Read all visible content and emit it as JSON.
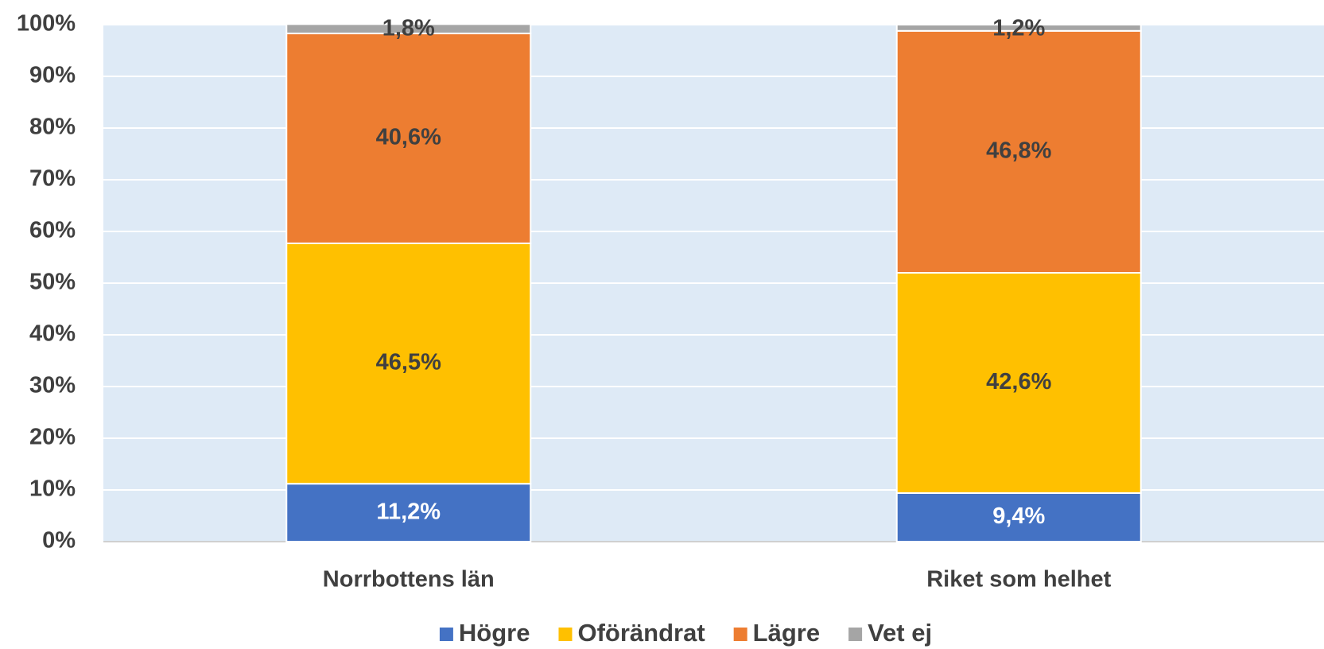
{
  "chart_data": {
    "type": "stacked-bar",
    "categories": [
      "Norrbottens län",
      "Riket som helhet"
    ],
    "series": [
      {
        "name": "Högre",
        "color": "#4472c4",
        "label_color": "#ffffff",
        "values": [
          11.2,
          9.4
        ],
        "value_labels": [
          "11,2%",
          "9,4%"
        ]
      },
      {
        "name": "Oförändrat",
        "color": "#ffc000",
        "label_color": "#404040",
        "values": [
          46.5,
          42.6
        ],
        "value_labels": [
          "46,5%",
          "42,6%"
        ]
      },
      {
        "name": "Lägre",
        "color": "#ed7d31",
        "label_color": "#404040",
        "values": [
          40.6,
          46.8
        ],
        "value_labels": [
          "40,6%",
          "46,8%"
        ]
      },
      {
        "name": "Vet ej",
        "color": "#a5a5a5",
        "label_color": "#404040",
        "values": [
          1.8,
          1.2
        ],
        "value_labels": [
          "1,8%",
          "1,2%"
        ]
      }
    ],
    "ylim": [
      0,
      100
    ],
    "yticks": [
      {
        "value": 0,
        "label": "0%"
      },
      {
        "value": 10,
        "label": "10%"
      },
      {
        "value": 20,
        "label": "20%"
      },
      {
        "value": 30,
        "label": "30%"
      },
      {
        "value": 40,
        "label": "40%"
      },
      {
        "value": 50,
        "label": "50%"
      },
      {
        "value": 60,
        "label": "60%"
      },
      {
        "value": 70,
        "label": "70%"
      },
      {
        "value": 80,
        "label": "80%"
      },
      {
        "value": 90,
        "label": "90%"
      },
      {
        "value": 100,
        "label": "100%"
      }
    ],
    "grid": true,
    "legend": "bottom",
    "background": "#deeaf6"
  }
}
